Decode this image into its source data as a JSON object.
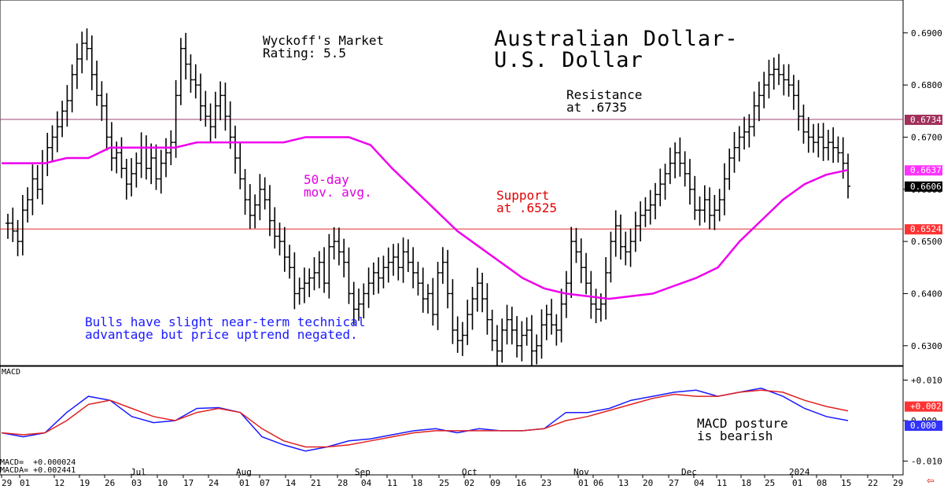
{
  "chart_data": [
    {
      "type": "ohlc-bar",
      "title": "Australian Dollar-\nU.S. Dollar",
      "rating": "Wyckoff's Market\nRating: 5.5",
      "ylim": [
        0.6265,
        0.696
      ],
      "yticks": [
        "0.6900",
        "0.6800",
        "0.6700",
        "0.6600",
        "0.6500",
        "0.6400",
        "0.6300"
      ],
      "ytick_values": [
        0.69,
        0.68,
        0.67,
        0.66,
        0.65,
        0.64,
        0.63
      ],
      "price_tags": [
        {
          "label": "0.6734",
          "value": 0.6734,
          "color": "#a0305a",
          "text_color": "#ffffff"
        },
        {
          "label": "0.6637",
          "value": 0.6637,
          "color": "#ff33ff",
          "text_color": "#ffffff"
        },
        {
          "label": "0.6606",
          "value": 0.6606,
          "color": "#000000",
          "text_color": "#ffffff"
        },
        {
          "label": "0.6524",
          "value": 0.6524,
          "color": "#ff3333",
          "text_color": "#ffffff"
        }
      ],
      "hlines": [
        {
          "name": "resistance",
          "value": 0.6734,
          "color": "#a04070"
        },
        {
          "name": "support",
          "value": 0.6524,
          "color": "#e03030"
        }
      ],
      "annotations": {
        "resistance": "Resistance\nat .6735",
        "support": "Support\nat .6525",
        "mov_avg": "50-day\nmov. avg.",
        "comment": "Bulls have slight near-term technical\nadvantage but price uptrend negated."
      },
      "price_series": [
        0.6535,
        0.652,
        0.65,
        0.656,
        0.658,
        0.662,
        0.66,
        0.665,
        0.668,
        0.67,
        0.672,
        0.675,
        0.677,
        0.682,
        0.685,
        0.688,
        0.687,
        0.682,
        0.678,
        0.676,
        0.67,
        0.666,
        0.667,
        0.664,
        0.661,
        0.663,
        0.665,
        0.668,
        0.664,
        0.666,
        0.662,
        0.665,
        0.667,
        0.669,
        0.678,
        0.687,
        0.684,
        0.681,
        0.68,
        0.676,
        0.674,
        0.672,
        0.676,
        0.678,
        0.674,
        0.67,
        0.666,
        0.662,
        0.658,
        0.655,
        0.657,
        0.66,
        0.658,
        0.654,
        0.651,
        0.65,
        0.647,
        0.645,
        0.64,
        0.641,
        0.642,
        0.643,
        0.644,
        0.646,
        0.642,
        0.649,
        0.65,
        0.648,
        0.646,
        0.64,
        0.637,
        0.638,
        0.64,
        0.642,
        0.644,
        0.643,
        0.645,
        0.646,
        0.647,
        0.645,
        0.648,
        0.646,
        0.644,
        0.642,
        0.639,
        0.64,
        0.636,
        0.644,
        0.646,
        0.64,
        0.633,
        0.631,
        0.632,
        0.636,
        0.639,
        0.642,
        0.639,
        0.635,
        0.631,
        0.629,
        0.633,
        0.635,
        0.633,
        0.63,
        0.632,
        0.633,
        0.629,
        0.63,
        0.634,
        0.636,
        0.634,
        0.633,
        0.638,
        0.642,
        0.65,
        0.648,
        0.645,
        0.642,
        0.638,
        0.637,
        0.638,
        0.644,
        0.65,
        0.653,
        0.649,
        0.648,
        0.65,
        0.653,
        0.655,
        0.656,
        0.657,
        0.659,
        0.661,
        0.663,
        0.665,
        0.667,
        0.665,
        0.663,
        0.66,
        0.656,
        0.656,
        0.658,
        0.655,
        0.656,
        0.658,
        0.662,
        0.666,
        0.668,
        0.67,
        0.671,
        0.672,
        0.676,
        0.678,
        0.68,
        0.682,
        0.683,
        0.682,
        0.681,
        0.68,
        0.678,
        0.674,
        0.671,
        0.67,
        0.669,
        0.67,
        0.668,
        0.669,
        0.668,
        0.667,
        0.665,
        0.6606
      ],
      "ma_series": [
        0.665,
        0.665,
        0.665,
        0.666,
        0.666,
        0.668,
        0.668,
        0.668,
        0.668,
        0.669,
        0.669,
        0.669,
        0.669,
        0.669,
        0.67,
        0.67,
        0.67,
        0.6685,
        0.664,
        0.66,
        0.656,
        0.652,
        0.649,
        0.646,
        0.643,
        0.641,
        0.64,
        0.6395,
        0.639,
        0.6395,
        0.64,
        0.6415,
        0.643,
        0.645,
        0.65,
        0.654,
        0.658,
        0.661,
        0.6628,
        0.6637
      ],
      "x_month_labels": [
        "Jul",
        "Aug",
        "Sep",
        "Oct",
        "Nov",
        "Dec",
        "2024"
      ],
      "x_day_labels": [
        "29",
        "01",
        "12",
        "19",
        "26",
        "03",
        "10",
        "17",
        "24",
        "01",
        "07",
        "14",
        "21",
        "28",
        "04",
        "11",
        "18",
        "25",
        "02",
        "09",
        "16",
        "23",
        "01",
        "06",
        "13",
        "20",
        "27",
        "04",
        "11",
        "18",
        "25",
        "01",
        "08",
        "15",
        "22",
        "29"
      ]
    },
    {
      "type": "line",
      "title": "MACD",
      "ylim": [
        -0.013,
        0.013
      ],
      "yticks": [
        "+0.010",
        "0.000",
        "-0.010"
      ],
      "ytick_values": [
        0.01,
        0.0,
        -0.01
      ],
      "tags": [
        {
          "label": "+0.002",
          "value": 0.0024,
          "color": "#ff3333"
        },
        {
          "label": "0.000",
          "value": 0.0,
          "color": "#3333ff"
        }
      ],
      "series": [
        {
          "name": "MACD",
          "color": "#1a1aff",
          "values": [
            -0.003,
            -0.004,
            -0.003,
            0.002,
            0.006,
            0.005,
            0.001,
            -0.0005,
            0.0,
            0.003,
            0.0032,
            0.002,
            -0.004,
            -0.006,
            -0.0075,
            -0.0065,
            -0.005,
            -0.0045,
            -0.0035,
            -0.0025,
            -0.002,
            -0.003,
            -0.002,
            -0.0025,
            -0.0025,
            -0.002,
            0.002,
            0.002,
            0.003,
            0.005,
            0.006,
            0.007,
            0.0075,
            0.006,
            0.007,
            0.008,
            0.006,
            0.003,
            0.001,
            0.0
          ]
        },
        {
          "name": "MACDA",
          "color": "#e02020",
          "values": [
            -0.003,
            -0.0035,
            -0.003,
            0.0,
            0.004,
            0.005,
            0.003,
            0.001,
            0.0,
            0.002,
            0.003,
            0.002,
            -0.002,
            -0.005,
            -0.0065,
            -0.0065,
            -0.006,
            -0.005,
            -0.004,
            -0.003,
            -0.0025,
            -0.0025,
            -0.0025,
            -0.0025,
            -0.0025,
            -0.002,
            0.0,
            0.001,
            0.0025,
            0.004,
            0.0055,
            0.0065,
            0.006,
            0.006,
            0.007,
            0.0075,
            0.007,
            0.005,
            0.0035,
            0.0024
          ]
        }
      ],
      "annotation": "MACD posture\nis bearish",
      "readout": {
        "macd": "MACD=  +0.000024",
        "macda": "MACDA= +0.002441"
      }
    }
  ]
}
